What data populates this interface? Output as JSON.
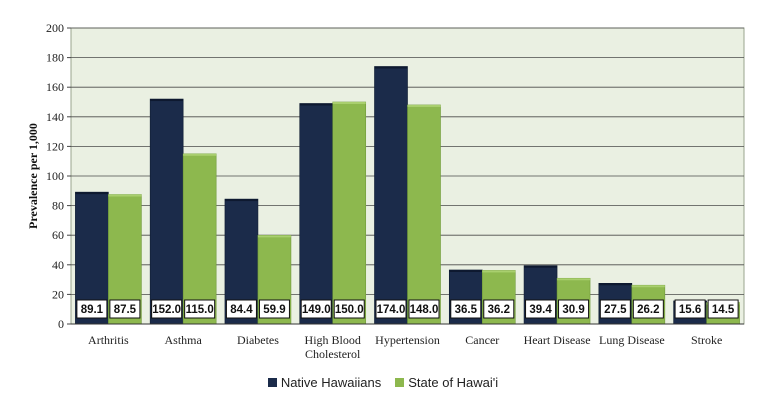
{
  "chart_data": {
    "type": "bar",
    "title": "",
    "xlabel": "",
    "ylabel": "Prevalence per 1,000",
    "ylim": [
      0,
      200
    ],
    "yticks": [
      0,
      20,
      40,
      60,
      80,
      100,
      120,
      140,
      160,
      180,
      200
    ],
    "grid": true,
    "legend_position": "bottom",
    "categories": [
      "Arthritis",
      "Asthma",
      "Diabetes",
      "High Blood Cholesterol",
      "Hypertension",
      "Cancer",
      "Heart Disease",
      "Lung Disease",
      "Stroke"
    ],
    "category_lines": [
      [
        "Arthritis"
      ],
      [
        "Asthma"
      ],
      [
        "Diabetes"
      ],
      [
        "High Blood",
        "Cholesterol"
      ],
      [
        "Hypertension"
      ],
      [
        "Cancer"
      ],
      [
        "Heart Disease"
      ],
      [
        "Lung Disease"
      ],
      [
        "Stroke"
      ]
    ],
    "series": [
      {
        "name": "Native Hawaiians",
        "color": "#1b2b4a",
        "values": [
          89.1,
          152.0,
          84.4,
          149.0,
          174.0,
          36.5,
          39.4,
          27.5,
          15.6
        ],
        "labels": [
          "89.1",
          "152.0",
          "84.4",
          "149.0",
          "174.0",
          "36.5",
          "39.4",
          "27.5",
          "15.6"
        ]
      },
      {
        "name": "State of Hawai'i",
        "color": "#8db84e",
        "values": [
          87.5,
          115.0,
          59.9,
          150.0,
          148.0,
          36.2,
          30.9,
          26.2,
          14.5
        ],
        "labels": [
          "87.5",
          "115.0",
          "59.9",
          "150.0",
          "148.0",
          "36.2",
          "30.9",
          "26.2",
          "14.5"
        ]
      }
    ],
    "plot_background": "#eaf0e2"
  }
}
